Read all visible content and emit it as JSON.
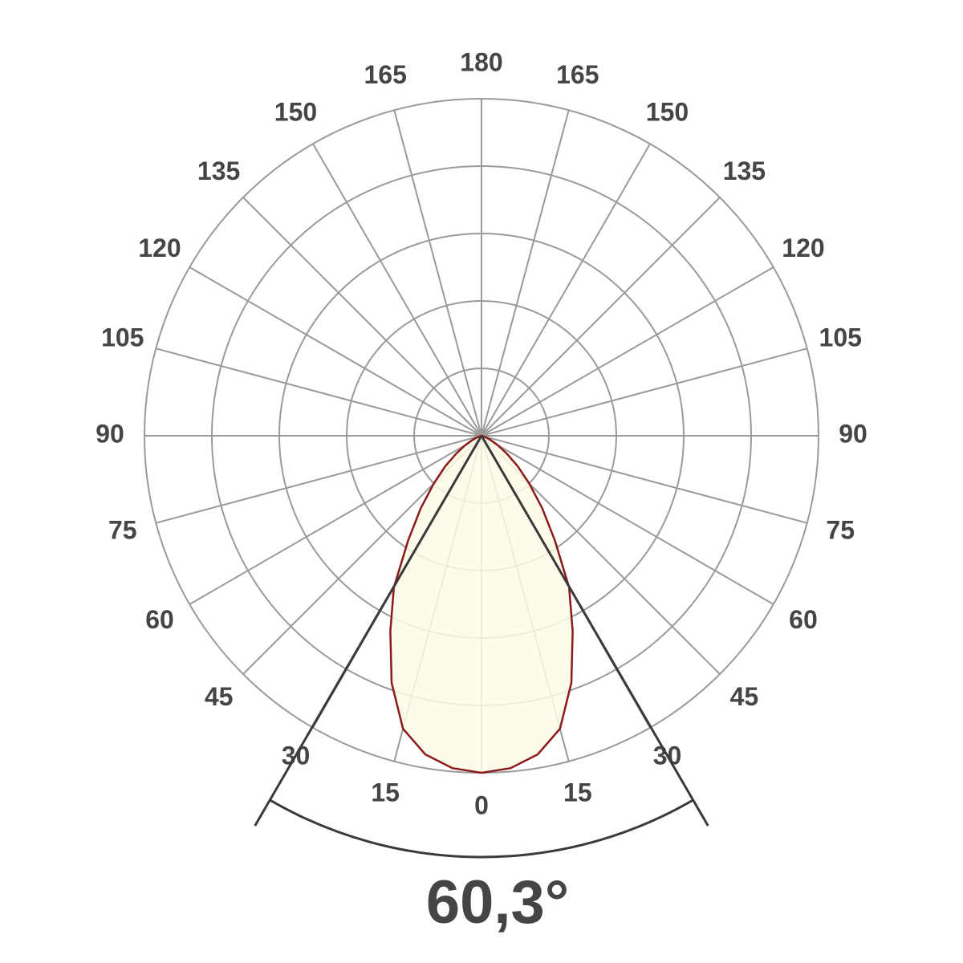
{
  "chart_data": {
    "type": "polar",
    "symmetric": true,
    "theta": [
      0,
      5,
      10,
      15,
      20,
      25,
      30,
      35,
      40,
      45,
      50,
      55,
      60,
      65,
      70,
      75,
      80,
      90
    ],
    "values": [
      5.0,
      4.95,
      4.8,
      4.5,
      3.9,
      3.2,
      2.6,
      1.9,
      1.4,
      1.0,
      0.7,
      0.45,
      0.28,
      0.15,
      0.07,
      0.02,
      0,
      0
    ],
    "color": "#8b1a1a",
    "fill": "#fdfbe6",
    "rlim": [
      0,
      5
    ],
    "rticks": [
      1,
      2,
      3,
      4,
      5
    ],
    "thetaticks": [
      0,
      15,
      30,
      45,
      60,
      75,
      90,
      105,
      120,
      135,
      150,
      165,
      180,
      {
        "value": 195,
        "label": "165"
      },
      {
        "value": 210,
        "label": "150"
      },
      {
        "value": 225,
        "label": "135"
      },
      {
        "value": 240,
        "label": "120"
      },
      {
        "value": 255,
        "label": "105"
      },
      {
        "value": 270,
        "label": "90"
      },
      {
        "value": 285,
        "label": "75"
      },
      {
        "value": 300,
        "label": "60"
      },
      {
        "value": 315,
        "label": "45"
      },
      {
        "value": 330,
        "label": "30"
      },
      {
        "value": 345,
        "label": "15"
      }
    ],
    "grid": true,
    "beam_angle": 60.3,
    "beam_label": "60,3°"
  }
}
